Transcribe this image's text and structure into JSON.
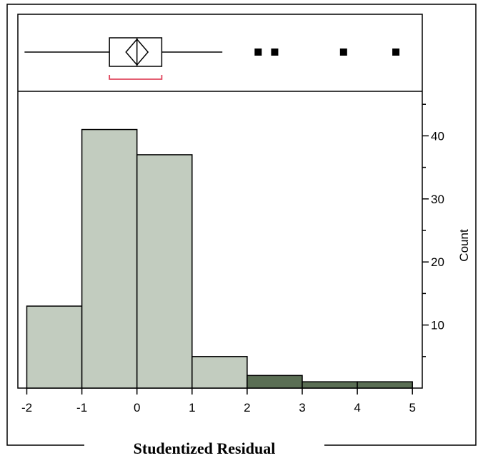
{
  "chart_data": {
    "type": "bar",
    "subtype": "histogram",
    "xlabel": "Studentized Residual",
    "ylabel": "Count",
    "xlim": [
      -2,
      5
    ],
    "ylim": [
      0,
      46
    ],
    "x_ticks": [
      "-2",
      "-1",
      "0",
      "1",
      "2",
      "3",
      "4",
      "5"
    ],
    "y_ticks": [
      "10",
      "20",
      "30",
      "40"
    ],
    "bins": [
      {
        "from": -2,
        "to": -1,
        "count": 13
      },
      {
        "from": -1,
        "to": 0,
        "count": 41
      },
      {
        "from": 0,
        "to": 1,
        "count": 37
      },
      {
        "from": 1,
        "to": 2,
        "count": 5
      },
      {
        "from": 2,
        "to": 3,
        "count": 2
      },
      {
        "from": 3,
        "to": 4,
        "count": 1
      },
      {
        "from": 4,
        "to": 5,
        "count": 1
      }
    ],
    "highlight_from": 2,
    "colors": {
      "bar_fill": "#c2ccbf",
      "highlight_fill": "#5a6e54",
      "shortest_half": "#e0475e"
    },
    "box_plot": {
      "whisker_low": -1.95,
      "q1": -0.5,
      "median": 0.0,
      "q3": 0.45,
      "whisker_high": 1.55,
      "mean": 0.0,
      "mean_diamond_low": -0.2,
      "mean_diamond_high": 0.2,
      "shortest_half": [
        -0.5,
        0.45
      ],
      "outliers": [
        2.2,
        2.5,
        3.75,
        4.7
      ]
    },
    "grid": false,
    "legend": "none"
  }
}
